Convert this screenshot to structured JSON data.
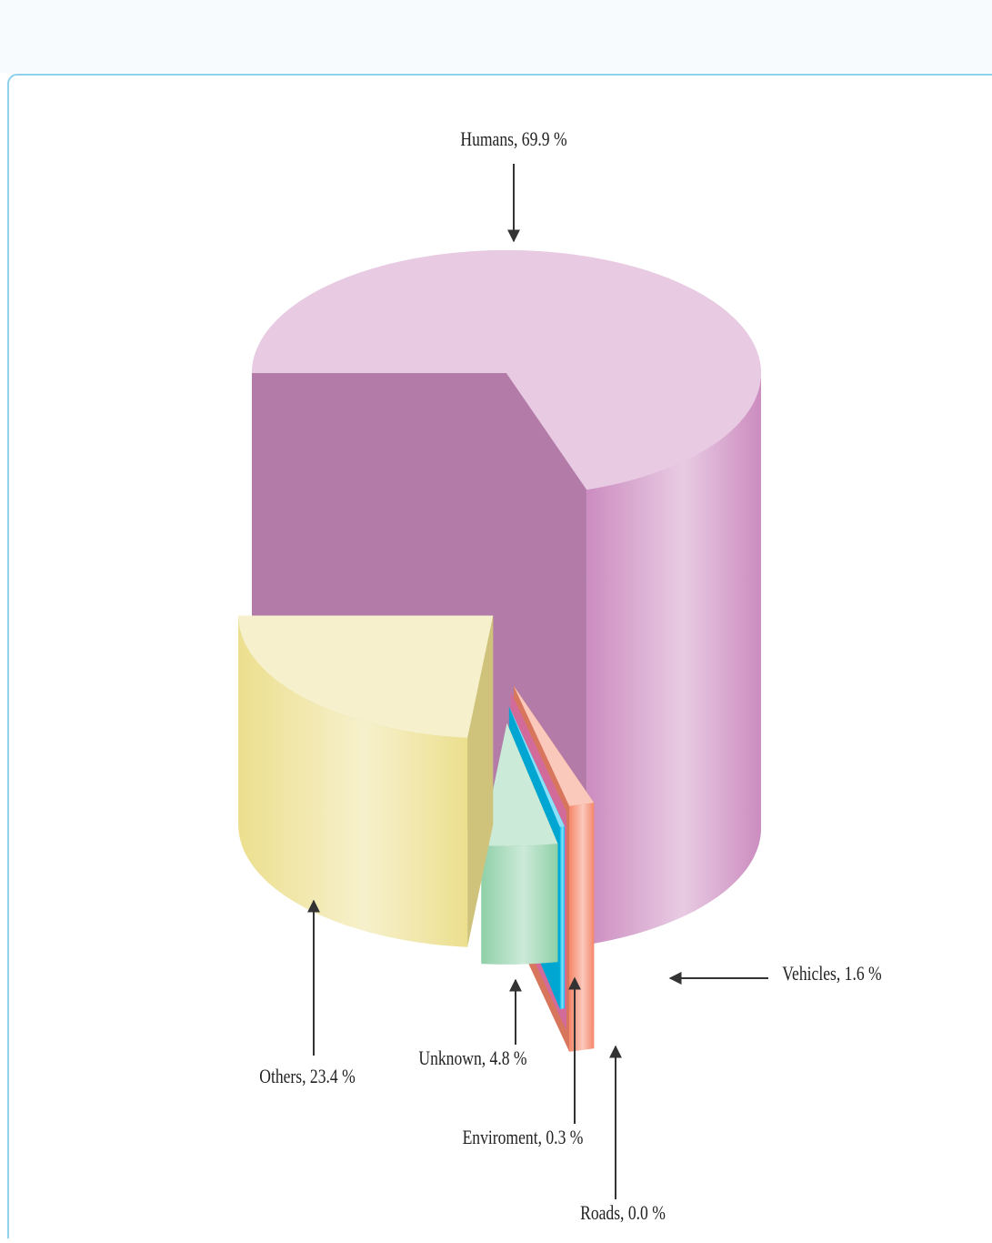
{
  "chart_data": {
    "type": "pie3d",
    "values": [
      69.9,
      1.6,
      0.0,
      0.3,
      4.8,
      23.4
    ],
    "value_labels": [
      "Humans, 69.9 %",
      "Vehicles, 1.6 %",
      "Roads, 0.0 %",
      "Enviroment, 0.3 %",
      "Unknown, 4.8 %",
      "Others, 23.4 %"
    ],
    "colors": [
      "#cc8cc0",
      "#f5876a",
      "#f07ab0",
      "#00bdf0",
      "#8fd0a8",
      "#ecdf8e"
    ]
  }
}
